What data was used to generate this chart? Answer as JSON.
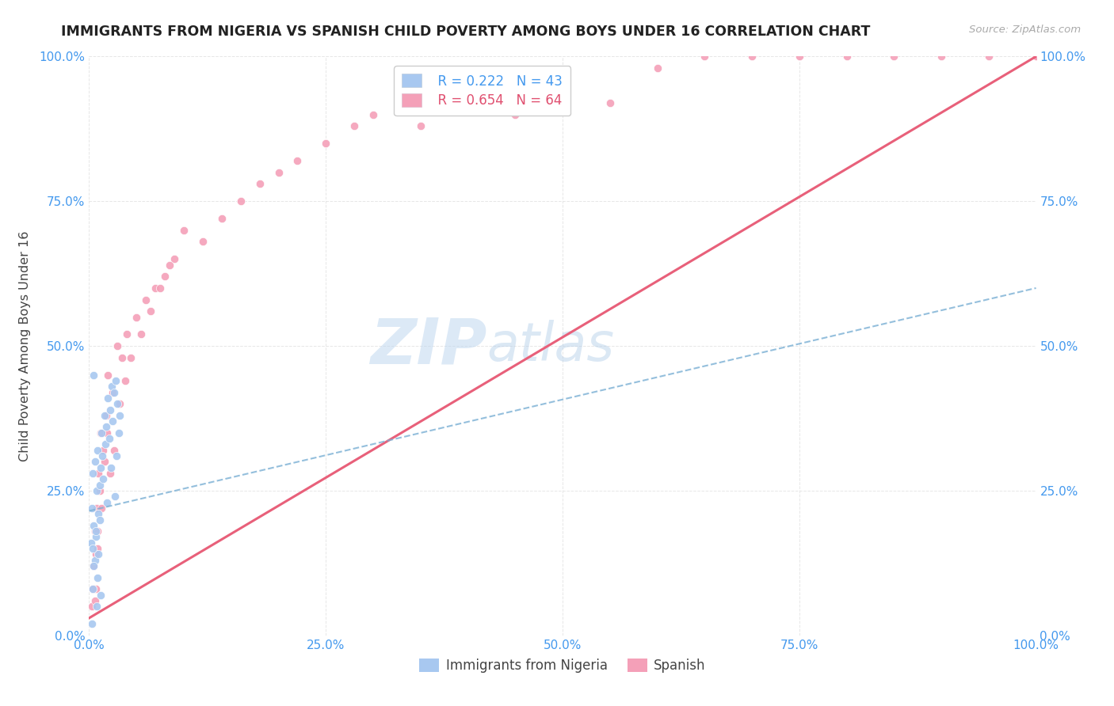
{
  "title": "IMMIGRANTS FROM NIGERIA VS SPANISH CHILD POVERTY AMONG BOYS UNDER 16 CORRELATION CHART",
  "source": "Source: ZipAtlas.com",
  "ylabel": "Child Poverty Among Boys Under 16",
  "xlim": [
    0,
    1.0
  ],
  "ylim": [
    0,
    1.0
  ],
  "xticks": [
    0.0,
    0.25,
    0.5,
    0.75,
    1.0
  ],
  "xticklabels": [
    "0.0%",
    "25.0%",
    "50.0%",
    "75.0%",
    "100.0%"
  ],
  "yticks": [
    0.0,
    0.25,
    0.5,
    0.75,
    1.0
  ],
  "yticklabels": [
    "0.0%",
    "25.0%",
    "50.0%",
    "75.0%",
    "100.0%"
  ],
  "legend_r1": "R = 0.222",
  "legend_n1": "N = 43",
  "legend_r2": "R = 0.654",
  "legend_n2": "N = 64",
  "legend_label1": "Immigrants from Nigeria",
  "legend_label2": "Spanish",
  "color_nigeria": "#a8c8f0",
  "color_spanish": "#f4a0b8",
  "color_nigeria_line": "#7aafd4",
  "color_spanish_line": "#e8607a",
  "color_title": "#222222",
  "color_source": "#aaaaaa",
  "color_tick": "#4499ee",
  "color_grid": "#e0e0e0",
  "watermark_zip": "ZIP",
  "watermark_atlas": "atlas",
  "nigeria_x": [
    0.003,
    0.004,
    0.005,
    0.006,
    0.007,
    0.008,
    0.009,
    0.01,
    0.011,
    0.012,
    0.013,
    0.014,
    0.015,
    0.016,
    0.017,
    0.018,
    0.019,
    0.02,
    0.021,
    0.022,
    0.023,
    0.024,
    0.025,
    0.026,
    0.027,
    0.028,
    0.029,
    0.03,
    0.031,
    0.032,
    0.002,
    0.004,
    0.005,
    0.006,
    0.007,
    0.008,
    0.009,
    0.01,
    0.011,
    0.012,
    0.003,
    0.004,
    0.005
  ],
  "nigeria_y": [
    0.22,
    0.28,
    0.19,
    0.3,
    0.17,
    0.25,
    0.32,
    0.21,
    0.26,
    0.29,
    0.35,
    0.31,
    0.27,
    0.38,
    0.33,
    0.36,
    0.23,
    0.41,
    0.34,
    0.39,
    0.29,
    0.43,
    0.37,
    0.42,
    0.24,
    0.44,
    0.31,
    0.4,
    0.35,
    0.38,
    0.16,
    0.08,
    0.45,
    0.13,
    0.18,
    0.05,
    0.1,
    0.14,
    0.2,
    0.07,
    0.02,
    0.15,
    0.12
  ],
  "spanish_x": [
    0.005,
    0.006,
    0.007,
    0.008,
    0.009,
    0.01,
    0.012,
    0.015,
    0.018,
    0.02,
    0.025,
    0.03,
    0.035,
    0.04,
    0.05,
    0.06,
    0.07,
    0.08,
    0.09,
    0.1,
    0.12,
    0.14,
    0.16,
    0.18,
    0.2,
    0.22,
    0.25,
    0.28,
    0.3,
    0.35,
    0.4,
    0.45,
    0.5,
    0.55,
    0.6,
    0.65,
    0.7,
    0.75,
    0.8,
    0.85,
    0.9,
    0.95,
    1.0,
    1.0,
    1.0,
    1.0,
    0.003,
    0.004,
    0.006,
    0.007,
    0.009,
    0.011,
    0.013,
    0.016,
    0.019,
    0.022,
    0.026,
    0.032,
    0.038,
    0.044,
    0.055,
    0.065,
    0.075,
    0.085
  ],
  "spanish_y": [
    0.12,
    0.18,
    0.08,
    0.22,
    0.15,
    0.28,
    0.35,
    0.32,
    0.38,
    0.45,
    0.42,
    0.5,
    0.48,
    0.52,
    0.55,
    0.58,
    0.6,
    0.62,
    0.65,
    0.7,
    0.68,
    0.72,
    0.75,
    0.78,
    0.8,
    0.82,
    0.85,
    0.88,
    0.9,
    0.88,
    0.92,
    0.9,
    0.95,
    0.92,
    0.98,
    1.0,
    1.0,
    1.0,
    1.0,
    1.0,
    1.0,
    1.0,
    1.0,
    1.0,
    1.0,
    1.0,
    0.05,
    0.08,
    0.06,
    0.14,
    0.18,
    0.25,
    0.22,
    0.3,
    0.35,
    0.28,
    0.32,
    0.4,
    0.44,
    0.48,
    0.52,
    0.56,
    0.6,
    0.64
  ],
  "nigeria_line_x": [
    0.0,
    1.0
  ],
  "nigeria_line_y": [
    0.215,
    0.6
  ],
  "spanish_line_x": [
    0.0,
    1.0
  ],
  "spanish_line_y": [
    0.03,
    1.0
  ]
}
